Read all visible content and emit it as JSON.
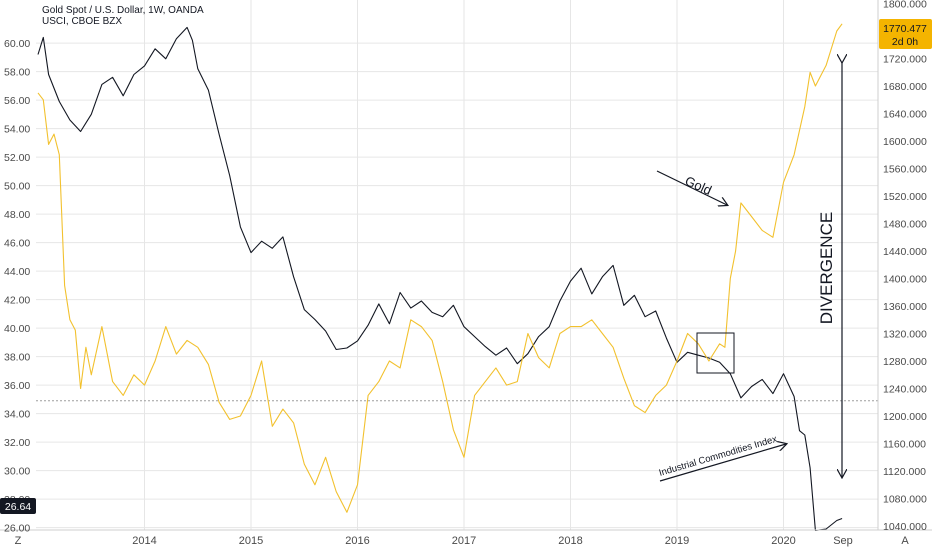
{
  "header": {
    "title": "Gold Spot / U.S. Dollar, 1W, OANDA",
    "subtitle": "USCI, CBOE BZX"
  },
  "badges": {
    "gold_price": "1770.477",
    "countdown": "2d 0h",
    "usci_price": "26.64"
  },
  "footer": {
    "left_button": "Z",
    "right_button": "A",
    "x_end_label": "Sep"
  },
  "annotations": {
    "gold_label": "Gold",
    "usci_label": "Industrial Commodities Index",
    "divergence_label": "DIVERGENCE"
  },
  "colors": {
    "gold_series": "#f2c12e",
    "usci_series": "#131722",
    "badge_gold": "#f4b400",
    "badge_usci": "#131722",
    "grid": "#e6e6e6",
    "ref_line": "#9e9e9e",
    "axis_text": "#4a4a4a"
  },
  "chart_data": {
    "type": "line",
    "title": "Gold Spot / U.S. Dollar, 1W, OANDA",
    "subtitle": "USCI, CBOE BZX",
    "x_tick_labels": [
      "2014",
      "2015",
      "2016",
      "2017",
      "2018",
      "2019",
      "2020",
      "Sep"
    ],
    "x_range": [
      2013.0,
      2020.75
    ],
    "left_axis": {
      "ylim": [
        25.2,
        61.6
      ],
      "ticks": [
        26.0,
        28.0,
        30.0,
        32.0,
        34.0,
        36.0,
        38.0,
        40.0,
        42.0,
        44.0,
        46.0,
        48.0,
        50.0,
        52.0,
        54.0,
        56.0,
        58.0,
        60.0
      ],
      "tick_labels": [
        "26.00",
        "28.00",
        "30.00",
        "32.00",
        "34.00",
        "36.00",
        "38.00",
        "40.00",
        "42.00",
        "44.00",
        "46.00",
        "48.00",
        "50.00",
        "52.00",
        "54.00",
        "56.00",
        "58.00",
        "60.00"
      ]
    },
    "right_axis": {
      "ylim": [
        1027,
        1810
      ],
      "ticks": [
        1040,
        1080,
        1120,
        1160,
        1200,
        1240,
        1280,
        1320,
        1360,
        1400,
        1440,
        1480,
        1520,
        1560,
        1600,
        1640,
        1680,
        1720,
        1760,
        1800
      ],
      "tick_labels": [
        "1040.000",
        "1080.000",
        "1120.000",
        "1160.000",
        "1200.000",
        "1240.000",
        "1280.000",
        "1320.000",
        "1360.000",
        "1400.000",
        "1440.000",
        "1480.000",
        "1520.000",
        "1560.000",
        "1600.000",
        "1640.000",
        "1680.000",
        "1720.000",
        "1760.000",
        "1800.000"
      ]
    },
    "reference_line": {
      "axis": "left",
      "value": 34.9,
      "style": "dotted"
    },
    "grid": true,
    "series": [
      {
        "name": "USCI, CBOE BZX",
        "axis": "left",
        "x": [
          2013.0,
          2013.05,
          2013.1,
          2013.2,
          2013.3,
          2013.4,
          2013.5,
          2013.6,
          2013.7,
          2013.8,
          2013.9,
          2014.0,
          2014.1,
          2014.2,
          2014.3,
          2014.4,
          2014.45,
          2014.5,
          2014.6,
          2014.7,
          2014.8,
          2014.9,
          2015.0,
          2015.1,
          2015.2,
          2015.3,
          2015.4,
          2015.5,
          2015.6,
          2015.7,
          2015.8,
          2015.9,
          2016.0,
          2016.1,
          2016.2,
          2016.3,
          2016.4,
          2016.5,
          2016.6,
          2016.7,
          2016.8,
          2016.9,
          2017.0,
          2017.1,
          2017.2,
          2017.3,
          2017.4,
          2017.5,
          2017.6,
          2017.7,
          2017.8,
          2017.9,
          2018.0,
          2018.1,
          2018.2,
          2018.3,
          2018.4,
          2018.5,
          2018.6,
          2018.7,
          2018.8,
          2018.9,
          2019.0,
          2019.1,
          2019.2,
          2019.3,
          2019.4,
          2019.5,
          2019.6,
          2019.7,
          2019.8,
          2019.9,
          2020.0,
          2020.1,
          2020.15,
          2020.2,
          2020.25,
          2020.3,
          2020.4,
          2020.5,
          2020.55
        ],
        "values": [
          59.2,
          60.4,
          57.8,
          55.9,
          54.6,
          53.8,
          55.0,
          57.1,
          57.6,
          56.3,
          57.8,
          58.4,
          59.6,
          58.9,
          60.3,
          61.1,
          60.2,
          58.2,
          56.7,
          53.6,
          50.7,
          47.1,
          45.3,
          46.1,
          45.6,
          46.4,
          43.6,
          41.3,
          40.6,
          39.8,
          38.5,
          38.6,
          39.1,
          40.2,
          41.7,
          40.3,
          42.5,
          41.4,
          41.9,
          41.1,
          40.8,
          41.6,
          40.1,
          39.4,
          38.7,
          38.1,
          38.6,
          37.5,
          38.2,
          39.4,
          40.1,
          41.9,
          43.3,
          44.2,
          42.4,
          43.6,
          44.4,
          41.6,
          42.3,
          40.8,
          41.2,
          39.3,
          37.6,
          38.3,
          38.1,
          37.9,
          37.6,
          36.8,
          35.1,
          35.9,
          36.4,
          35.4,
          36.8,
          35.2,
          32.8,
          32.5,
          30.2,
          25.8,
          25.9,
          26.5,
          26.64
        ]
      },
      {
        "name": "Gold Spot / U.S. Dollar",
        "axis": "right",
        "x": [
          2013.0,
          2013.05,
          2013.1,
          2013.15,
          2013.2,
          2013.25,
          2013.3,
          2013.35,
          2013.4,
          2013.45,
          2013.5,
          2013.6,
          2013.7,
          2013.8,
          2013.9,
          2014.0,
          2014.1,
          2014.2,
          2014.3,
          2014.4,
          2014.5,
          2014.6,
          2014.7,
          2014.8,
          2014.9,
          2015.0,
          2015.1,
          2015.2,
          2015.3,
          2015.4,
          2015.5,
          2015.6,
          2015.7,
          2015.8,
          2015.9,
          2016.0,
          2016.1,
          2016.2,
          2016.3,
          2016.4,
          2016.5,
          2016.6,
          2016.7,
          2016.8,
          2016.9,
          2017.0,
          2017.1,
          2017.2,
          2017.3,
          2017.4,
          2017.5,
          2017.6,
          2017.7,
          2017.8,
          2017.9,
          2018.0,
          2018.1,
          2018.2,
          2018.3,
          2018.4,
          2018.5,
          2018.6,
          2018.7,
          2018.8,
          2018.9,
          2019.0,
          2019.1,
          2019.2,
          2019.3,
          2019.4,
          2019.45,
          2019.5,
          2019.55,
          2019.6,
          2019.7,
          2019.8,
          2019.9,
          2020.0,
          2020.1,
          2020.2,
          2020.25,
          2020.3,
          2020.4,
          2020.5,
          2020.55
        ],
        "values": [
          1670,
          1660,
          1595,
          1610,
          1580,
          1390,
          1340,
          1325,
          1240,
          1300,
          1260,
          1330,
          1250,
          1230,
          1260,
          1245,
          1280,
          1330,
          1290,
          1310,
          1300,
          1275,
          1220,
          1195,
          1200,
          1230,
          1280,
          1185,
          1210,
          1190,
          1130,
          1100,
          1140,
          1090,
          1060,
          1100,
          1230,
          1250,
          1280,
          1270,
          1340,
          1330,
          1310,
          1250,
          1180,
          1140,
          1230,
          1250,
          1270,
          1245,
          1250,
          1320,
          1285,
          1270,
          1320,
          1330,
          1330,
          1340,
          1320,
          1300,
          1255,
          1215,
          1205,
          1230,
          1245,
          1280,
          1320,
          1305,
          1280,
          1305,
          1300,
          1400,
          1440,
          1510,
          1490,
          1470,
          1460,
          1540,
          1580,
          1650,
          1700,
          1680,
          1710,
          1760,
          1770.477
        ]
      }
    ]
  }
}
